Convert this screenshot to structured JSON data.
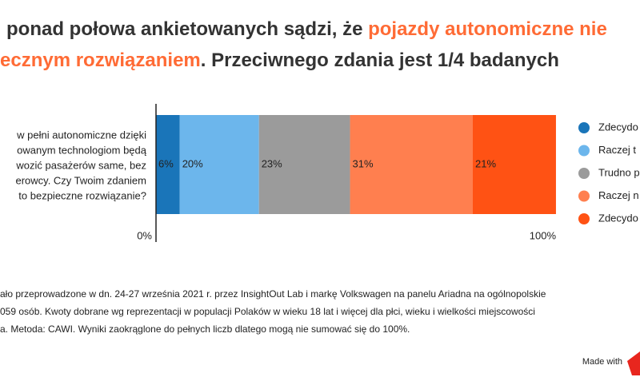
{
  "chart_data": {
    "type": "stacked-bar",
    "title": [
      [
        "ponad połowa ankietowanych sądzi, że ",
        "pojazdy autonomiczne nie"
      ],
      [
        "ecznym rozwiązaniem",
        ". Przeciwnego zdania jest 1/4 badanych"
      ]
    ],
    "highlight_color": "#ff6b35",
    "categories": [
      [
        "w pełni autonomiczne dzięki",
        "owanym technologiom będą",
        "wozić pasażerów same, bez",
        "erowcy. Czy Twoim zdaniem",
        "to bezpieczne rozwiązanie?"
      ]
    ],
    "series": [
      {
        "name": "Zdecydo",
        "color": "#1a75b9",
        "values": [
          6
        ],
        "value_labels": [
          "6%"
        ]
      },
      {
        "name": "Raczej t",
        "color": "#6cb6ec",
        "values": [
          20
        ],
        "value_labels": [
          "20%"
        ]
      },
      {
        "name": "Trudno p",
        "color": "#9b9b9b",
        "values": [
          23
        ],
        "value_labels": [
          "23%"
        ]
      },
      {
        "name": "Raczej n",
        "color": "#ff7f4f",
        "values": [
          31
        ],
        "value_labels": [
          "31%"
        ]
      },
      {
        "name": "Zdecydo",
        "color": "#ff5214",
        "values": [
          21
        ],
        "value_labels": [
          "21%"
        ]
      }
    ],
    "xlim": [
      0,
      100
    ],
    "xticks": [
      {
        "value": 0,
        "label": "0%"
      },
      {
        "value": 100,
        "label": "100%"
      }
    ],
    "legend": "right",
    "footnote": [
      "ało przeprowadzone w dn. 24-27 września 2021 r. przez InsightOut Lab i markę Volkswagen na panelu Ariadna na ogólnopolskie",
      "059 osób. Kwoty dobrane wg reprezentacji w populacji Polaków w wieku 18 lat i więcej dla płci, wieku i wielkości miejscowości",
      "a. Metoda: CAWI. Wyniki zaokrąglone do pełnych liczb dlatego mogą nie sumować się do 100%."
    ],
    "credit": "Made with"
  }
}
